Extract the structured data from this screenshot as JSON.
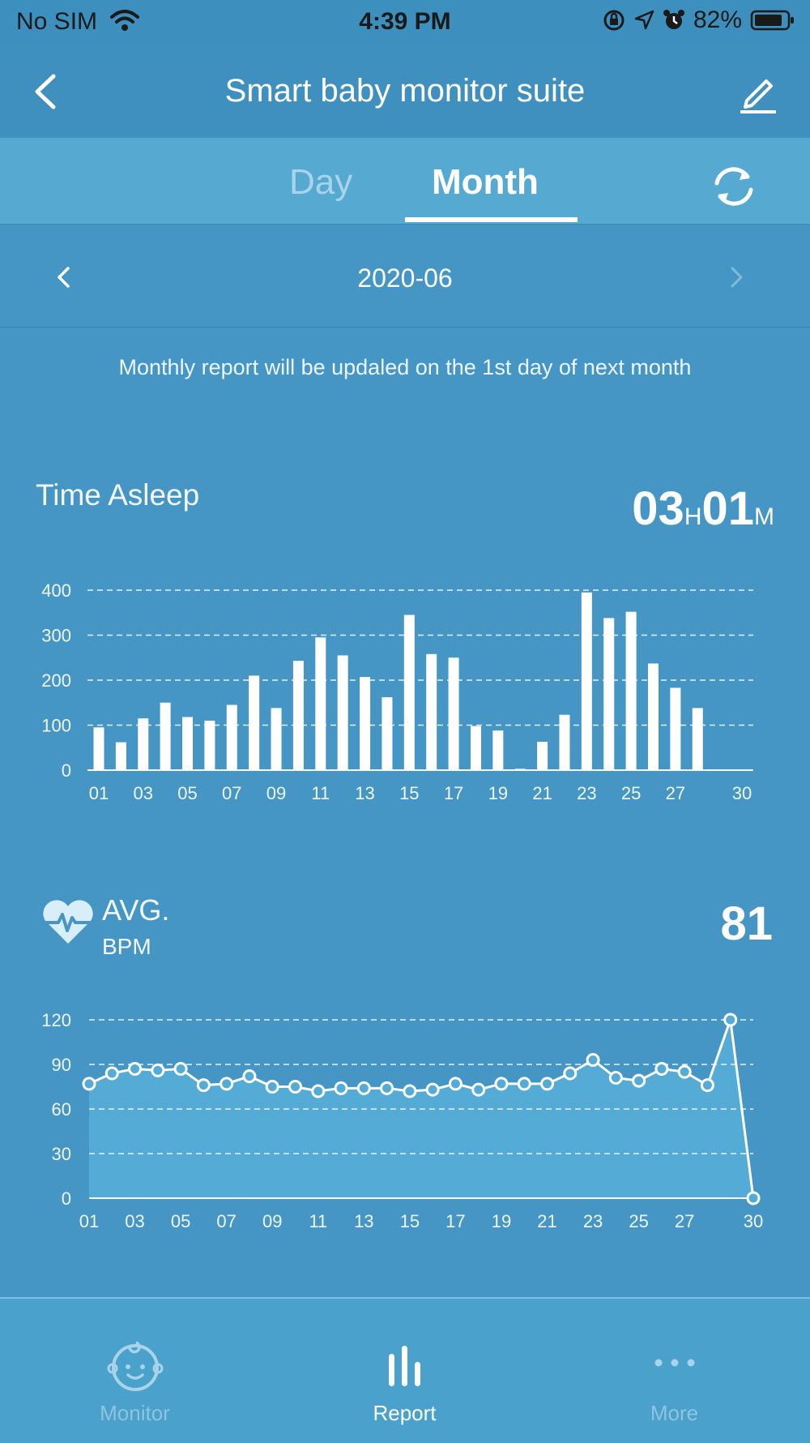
{
  "status_bar": {
    "carrier": "No SIM",
    "time": "4:39 PM",
    "battery": "82%"
  },
  "nav": {
    "title": "Smart baby monitor suite",
    "back_icon": "chevron-left-icon",
    "edit_icon": "pencil-icon"
  },
  "tabs": {
    "day": "Day",
    "month": "Month",
    "active": "Month",
    "refresh_icon": "refresh-icon"
  },
  "period": {
    "label": "2020-06",
    "prev_icon": "chevron-left-icon",
    "next_icon": "chevron-right-icon"
  },
  "notice": "Monthly report will be updaled on the 1st day of next month",
  "time_asleep": {
    "title": "Time Asleep",
    "hours": "03",
    "hours_unit": "H",
    "minutes": "01",
    "minutes_unit": "M"
  },
  "avg_bpm": {
    "title": "AVG.",
    "subtitle": "BPM",
    "value": "81",
    "icon": "heart-pulse-icon"
  },
  "bottom_tabs": [
    {
      "label": "Monitor",
      "icon": "baby-face-icon",
      "active": false
    },
    {
      "label": "Report",
      "icon": "bar-chart-icon",
      "active": true
    },
    {
      "label": "More",
      "icon": "more-dots-icon",
      "active": false
    }
  ],
  "colors": {
    "background": "#4596c4",
    "tab_bar": "#56a9d1",
    "bar": "#ffffff",
    "area_fill": "#54abd6"
  },
  "chart_data": [
    {
      "type": "bar",
      "title": "Time Asleep",
      "x": [
        "01",
        "02",
        "03",
        "04",
        "05",
        "06",
        "07",
        "08",
        "09",
        "10",
        "11",
        "12",
        "13",
        "14",
        "15",
        "16",
        "17",
        "18",
        "19",
        "20",
        "21",
        "22",
        "23",
        "24",
        "25",
        "26",
        "27",
        "28",
        "29",
        "30"
      ],
      "xticks": [
        "01",
        "03",
        "05",
        "07",
        "09",
        "11",
        "13",
        "15",
        "17",
        "19",
        "21",
        "23",
        "25",
        "27",
        "30"
      ],
      "values": [
        95,
        62,
        115,
        150,
        118,
        110,
        145,
        210,
        138,
        243,
        295,
        255,
        207,
        162,
        345,
        258,
        250,
        98,
        88,
        3,
        63,
        123,
        395,
        338,
        352,
        237,
        183,
        138,
        0,
        0
      ],
      "yticks": [
        0,
        100,
        200,
        300,
        400
      ],
      "ylim": [
        0,
        400
      ],
      "grid": true
    },
    {
      "type": "area",
      "title": "AVG. BPM",
      "x": [
        "01",
        "02",
        "03",
        "04",
        "05",
        "06",
        "07",
        "08",
        "09",
        "10",
        "11",
        "12",
        "13",
        "14",
        "15",
        "16",
        "17",
        "18",
        "19",
        "20",
        "21",
        "22",
        "23",
        "24",
        "25",
        "26",
        "27",
        "28",
        "29",
        "30"
      ],
      "xticks": [
        "01",
        "03",
        "05",
        "07",
        "09",
        "11",
        "13",
        "15",
        "17",
        "19",
        "21",
        "23",
        "25",
        "27",
        "30"
      ],
      "values": [
        77,
        84,
        87,
        86,
        87,
        76,
        77,
        82,
        75,
        75,
        72,
        74,
        74,
        74,
        72,
        73,
        77,
        73,
        77,
        77,
        77,
        84,
        93,
        81,
        79,
        87,
        85,
        76,
        120,
        0
      ],
      "yticks": [
        0,
        30,
        60,
        90,
        120
      ],
      "ylim": [
        0,
        120
      ],
      "grid": true
    }
  ]
}
